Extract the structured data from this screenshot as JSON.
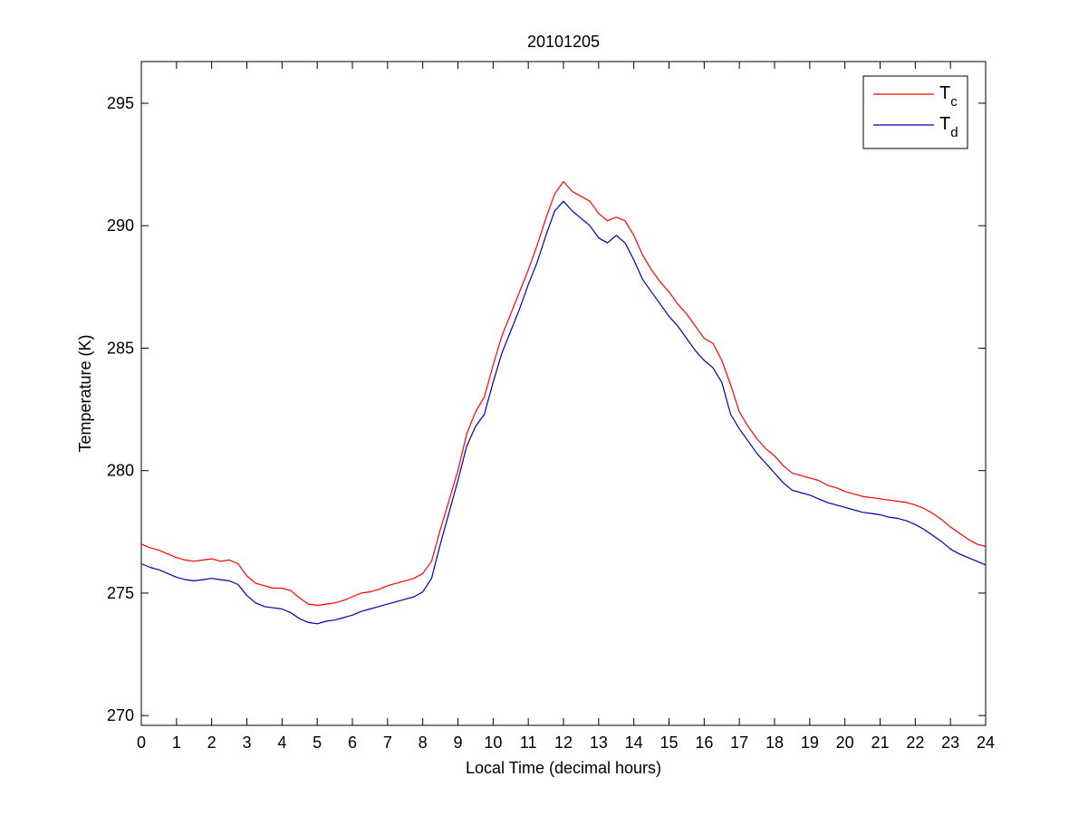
{
  "chart_data": {
    "type": "line",
    "title": "20101205",
    "xlabel": "Local Time (decimal hours)",
    "ylabel": "Temperature (K)",
    "xlim": [
      0,
      24
    ],
    "ylim": [
      269.6,
      296.7
    ],
    "xticks": [
      0,
      1,
      2,
      3,
      4,
      5,
      6,
      7,
      8,
      9,
      10,
      11,
      12,
      13,
      14,
      15,
      16,
      17,
      18,
      19,
      20,
      21,
      22,
      23,
      24
    ],
    "yticks": [
      270,
      275,
      280,
      285,
      290,
      295
    ],
    "grid": false,
    "legend": "top-right",
    "series": [
      {
        "name": "T",
        "name_subscript": "c",
        "color": "#ff0000",
        "x": [
          0,
          0.25,
          0.5,
          0.75,
          1,
          1.25,
          1.5,
          1.75,
          2,
          2.25,
          2.5,
          2.75,
          3,
          3.25,
          3.5,
          3.75,
          4,
          4.25,
          4.5,
          4.75,
          5,
          5.25,
          5.5,
          5.75,
          6,
          6.25,
          6.5,
          6.75,
          7,
          7.25,
          7.5,
          7.75,
          8,
          8.25,
          8.5,
          8.75,
          9,
          9.25,
          9.5,
          9.75,
          10,
          10.25,
          10.5,
          10.75,
          11,
          11.25,
          11.5,
          11.75,
          12,
          12.25,
          12.5,
          12.75,
          13,
          13.25,
          13.5,
          13.75,
          14,
          14.25,
          14.5,
          14.75,
          15,
          15.25,
          15.5,
          15.75,
          16,
          16.25,
          16.5,
          16.75,
          17,
          17.25,
          17.5,
          17.75,
          18,
          18.25,
          18.5,
          18.75,
          19,
          19.25,
          19.5,
          19.75,
          20,
          20.25,
          20.5,
          20.75,
          21,
          21.25,
          21.5,
          21.75,
          22,
          22.25,
          22.5,
          22.75,
          23,
          23.25,
          23.5,
          23.75,
          24
        ],
        "values": [
          277.0,
          276.85,
          276.75,
          276.6,
          276.45,
          276.35,
          276.3,
          276.35,
          276.4,
          276.3,
          276.35,
          276.2,
          275.7,
          275.4,
          275.3,
          275.2,
          275.2,
          275.1,
          274.8,
          274.55,
          274.5,
          274.55,
          274.6,
          274.7,
          274.85,
          275.0,
          275.05,
          275.15,
          275.3,
          275.4,
          275.5,
          275.6,
          275.8,
          276.3,
          277.6,
          278.8,
          280.0,
          281.5,
          282.4,
          283.0,
          284.3,
          285.5,
          286.4,
          287.3,
          288.2,
          289.2,
          290.3,
          291.3,
          291.8,
          291.4,
          291.2,
          291.0,
          290.5,
          290.2,
          290.35,
          290.2,
          289.6,
          288.8,
          288.2,
          287.7,
          287.3,
          286.8,
          286.4,
          285.9,
          285.4,
          285.2,
          284.5,
          283.5,
          282.4,
          281.8,
          281.3,
          280.9,
          280.6,
          280.2,
          279.9,
          279.8,
          279.7,
          279.6,
          279.4,
          279.3,
          279.15,
          279.05,
          278.95,
          278.9,
          278.85,
          278.8,
          278.75,
          278.7,
          278.6,
          278.45,
          278.25,
          278.0,
          277.7,
          277.45,
          277.2,
          277.0,
          276.9
        ]
      },
      {
        "name": "T",
        "name_subscript": "d",
        "color": "#0000aa",
        "x": [
          0,
          0.25,
          0.5,
          0.75,
          1,
          1.25,
          1.5,
          1.75,
          2,
          2.25,
          2.5,
          2.75,
          3,
          3.25,
          3.5,
          3.75,
          4,
          4.25,
          4.5,
          4.75,
          5,
          5.25,
          5.5,
          5.75,
          6,
          6.25,
          6.5,
          6.75,
          7,
          7.25,
          7.5,
          7.75,
          8,
          8.25,
          8.5,
          8.75,
          9,
          9.25,
          9.5,
          9.75,
          10,
          10.25,
          10.5,
          10.75,
          11,
          11.25,
          11.5,
          11.75,
          12,
          12.25,
          12.5,
          12.75,
          13,
          13.25,
          13.5,
          13.75,
          14,
          14.25,
          14.5,
          14.75,
          15,
          15.25,
          15.5,
          15.75,
          16,
          16.25,
          16.5,
          16.75,
          17,
          17.25,
          17.5,
          17.75,
          18,
          18.25,
          18.5,
          18.75,
          19,
          19.25,
          19.5,
          19.75,
          20,
          20.25,
          20.5,
          20.75,
          21,
          21.25,
          21.5,
          21.75,
          22,
          22.25,
          22.5,
          22.75,
          23,
          23.25,
          23.5,
          23.75,
          24
        ],
        "values": [
          276.2,
          276.05,
          275.95,
          275.8,
          275.65,
          275.55,
          275.5,
          275.55,
          275.6,
          275.55,
          275.5,
          275.35,
          274.9,
          274.6,
          274.45,
          274.4,
          274.35,
          274.2,
          273.95,
          273.8,
          273.75,
          273.85,
          273.9,
          274.0,
          274.1,
          274.25,
          274.35,
          274.45,
          274.55,
          274.65,
          274.75,
          274.85,
          275.05,
          275.6,
          277.0,
          278.3,
          279.6,
          281.0,
          281.8,
          282.3,
          283.6,
          284.8,
          285.7,
          286.6,
          287.6,
          288.5,
          289.6,
          290.6,
          291.0,
          290.6,
          290.3,
          290.0,
          289.5,
          289.3,
          289.6,
          289.3,
          288.6,
          287.8,
          287.3,
          286.8,
          286.3,
          285.9,
          285.4,
          284.9,
          284.5,
          284.2,
          283.6,
          282.3,
          281.7,
          281.2,
          280.7,
          280.3,
          279.9,
          279.5,
          279.2,
          279.1,
          279.0,
          278.85,
          278.7,
          278.6,
          278.5,
          278.4,
          278.3,
          278.25,
          278.2,
          278.1,
          278.05,
          277.95,
          277.8,
          277.6,
          277.35,
          277.1,
          276.8,
          276.6,
          276.45,
          276.3,
          276.15
        ]
      }
    ]
  }
}
